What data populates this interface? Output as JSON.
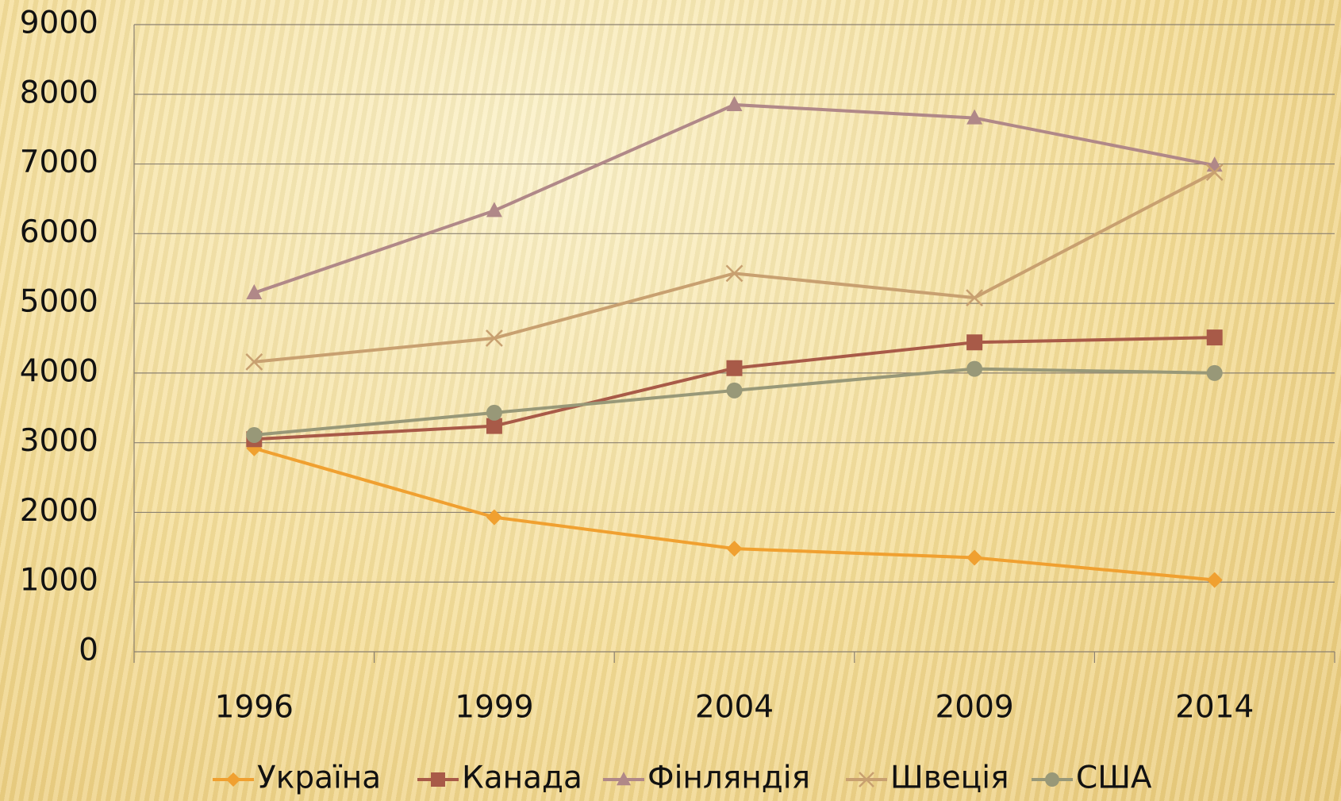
{
  "chart_data": {
    "type": "line",
    "categories": [
      "1996",
      "1999",
      "2004",
      "2009",
      "2014"
    ],
    "series": [
      {
        "name": "Україна",
        "color": "#f0a030",
        "marker": "diamond",
        "values": [
          2920,
          1930,
          1480,
          1350,
          1030
        ]
      },
      {
        "name": "Канада",
        "color": "#a85a48",
        "marker": "square",
        "values": [
          3050,
          3240,
          4070,
          4440,
          4510
        ]
      },
      {
        "name": "Фінляндія",
        "color": "#b08888",
        "marker": "triangle",
        "values": [
          5150,
          6330,
          7850,
          7660,
          6980
        ]
      },
      {
        "name": "Швеція",
        "color": "#c8a070",
        "marker": "x",
        "values": [
          4160,
          4500,
          5430,
          5080,
          6880
        ]
      },
      {
        "name": "США",
        "color": "#989878",
        "marker": "circle",
        "values": [
          3110,
          3430,
          3750,
          4060,
          4000
        ]
      }
    ],
    "ylim": [
      0,
      9000
    ],
    "yticks": [
      0,
      1000,
      2000,
      3000,
      4000,
      5000,
      6000,
      7000,
      8000,
      9000
    ],
    "grid": true,
    "legend": "bottom"
  }
}
